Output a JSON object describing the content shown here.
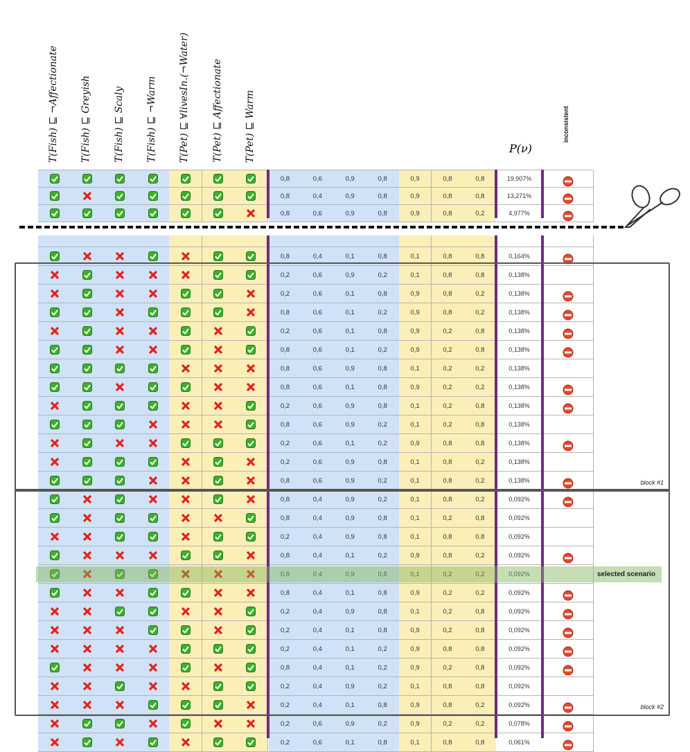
{
  "headers": [
    "T(Fish) ⊑ ¬Affectionate",
    "T(Fish) ⊑ Greyish",
    "T(Fish) ⊑ Scaly",
    "T(Fish) ⊑ ¬Warm",
    "T(Pet) ⊑ ∀livesIn.(¬Water)",
    "T(Pet) ⊑ Affectionate",
    "T(Pet) ⊑ Warm"
  ],
  "p_header": "P(ν)",
  "inconsistent_header": "inconsistent",
  "top_rows": [
    {
      "holds": [
        1,
        1,
        1,
        1,
        1,
        1,
        1
      ],
      "weights": [
        "0,8",
        "0,6",
        "0,9",
        "0,8",
        "0,9",
        "0,8",
        "0,8"
      ],
      "p": "19,907%",
      "inconsistent": 1
    },
    {
      "holds": [
        1,
        0,
        1,
        1,
        1,
        1,
        1
      ],
      "weights": [
        "0,8",
        "0,4",
        "0,9",
        "0,8",
        "0,9",
        "0,8",
        "0,8"
      ],
      "p": "13,271%",
      "inconsistent": 1
    },
    {
      "holds": [
        1,
        1,
        1,
        1,
        1,
        1,
        0
      ],
      "weights": [
        "0,8",
        "0,6",
        "0,9",
        "0,8",
        "0,9",
        "0,8",
        "0,2"
      ],
      "p": "4,977%",
      "inconsistent": 1
    }
  ],
  "rows_before": [
    {
      "holds": [
        1,
        0,
        0,
        1,
        0,
        1,
        1
      ],
      "weights": [
        "0,8",
        "0,4",
        "0,1",
        "0,8",
        "0,1",
        "0,8",
        "0,8"
      ],
      "p": "0,164%",
      "inconsistent": 1
    }
  ],
  "blocks": [
    {
      "label": "block #1",
      "rows": [
        {
          "holds": [
            0,
            1,
            0,
            0,
            0,
            1,
            1
          ],
          "weights": [
            "0,2",
            "0,6",
            "0,9",
            "0,2",
            "0,1",
            "0,8",
            "0,8"
          ],
          "p": "0,138%",
          "inconsistent": 0
        },
        {
          "holds": [
            0,
            1,
            0,
            0,
            1,
            1,
            0
          ],
          "weights": [
            "0,2",
            "0,6",
            "0,1",
            "0,8",
            "0,9",
            "0,8",
            "0,2"
          ],
          "p": "0,138%",
          "inconsistent": 1
        },
        {
          "holds": [
            1,
            1,
            0,
            1,
            1,
            1,
            0
          ],
          "weights": [
            "0,8",
            "0,6",
            "0,1",
            "0,2",
            "0,9",
            "0,8",
            "0,2"
          ],
          "p": "0,138%",
          "inconsistent": 1
        },
        {
          "holds": [
            0,
            1,
            0,
            0,
            1,
            0,
            1
          ],
          "weights": [
            "0,2",
            "0,6",
            "0,1",
            "0,8",
            "0,9",
            "0,2",
            "0,8"
          ],
          "p": "0,138%",
          "inconsistent": 1
        },
        {
          "holds": [
            1,
            1,
            0,
            0,
            1,
            0,
            1
          ],
          "weights": [
            "0,8",
            "0,6",
            "0,1",
            "0,2",
            "0,9",
            "0,2",
            "0,8"
          ],
          "p": "0,138%",
          "inconsistent": 1
        },
        {
          "holds": [
            1,
            1,
            1,
            1,
            0,
            0,
            0
          ],
          "weights": [
            "0,8",
            "0,6",
            "0,9",
            "0,8",
            "0,1",
            "0,2",
            "0,2"
          ],
          "p": "0,138%",
          "inconsistent": 0
        },
        {
          "holds": [
            1,
            1,
            0,
            1,
            1,
            0,
            0
          ],
          "weights": [
            "0,8",
            "0,6",
            "0,1",
            "0,8",
            "0,9",
            "0,2",
            "0,2"
          ],
          "p": "0,138%",
          "inconsistent": 1
        },
        {
          "holds": [
            0,
            1,
            1,
            1,
            0,
            0,
            1
          ],
          "weights": [
            "0,2",
            "0,6",
            "0,9",
            "0,8",
            "0,1",
            "0,2",
            "0,8"
          ],
          "p": "0,138%",
          "inconsistent": 1
        },
        {
          "holds": [
            1,
            1,
            1,
            0,
            0,
            0,
            1
          ],
          "weights": [
            "0,8",
            "0,6",
            "0,9",
            "0,2",
            "0,1",
            "0,2",
            "0,8"
          ],
          "p": "0,138%",
          "inconsistent": 0
        },
        {
          "holds": [
            0,
            1,
            0,
            0,
            1,
            1,
            1
          ],
          "weights": [
            "0,2",
            "0,6",
            "0,1",
            "0,2",
            "0,9",
            "0,8",
            "0,8"
          ],
          "p": "0,138%",
          "inconsistent": 1
        },
        {
          "holds": [
            0,
            1,
            1,
            1,
            0,
            1,
            0
          ],
          "weights": [
            "0,2",
            "0,6",
            "0,9",
            "0,8",
            "0,1",
            "0,8",
            "0,2"
          ],
          "p": "0,138%",
          "inconsistent": 0
        },
        {
          "holds": [
            1,
            1,
            1,
            0,
            0,
            1,
            0
          ],
          "weights": [
            "0,8",
            "0,6",
            "0,9",
            "0,2",
            "0,1",
            "0,8",
            "0,2"
          ],
          "p": "0,138%",
          "inconsistent": 1
        }
      ]
    },
    {
      "label": "block #2",
      "rows": [
        {
          "holds": [
            1,
            0,
            1,
            0,
            0,
            1,
            0
          ],
          "weights": [
            "0,8",
            "0,4",
            "0,9",
            "0,2",
            "0,1",
            "0,8",
            "0,2"
          ],
          "p": "0,092%",
          "inconsistent": 1
        },
        {
          "holds": [
            1,
            0,
            1,
            1,
            0,
            0,
            1
          ],
          "weights": [
            "0,8",
            "0,4",
            "0,9",
            "0,8",
            "0,1",
            "0,2",
            "0,8"
          ],
          "p": "0,092%",
          "inconsistent": 0
        },
        {
          "holds": [
            0,
            0,
            1,
            1,
            0,
            1,
            1
          ],
          "weights": [
            "0,2",
            "0,4",
            "0,9",
            "0,8",
            "0,1",
            "0,8",
            "0,8"
          ],
          "p": "0,092%",
          "inconsistent": 0
        },
        {
          "holds": [
            1,
            0,
            0,
            0,
            1,
            1,
            0
          ],
          "weights": [
            "0,8",
            "0,4",
            "0,1",
            "0,2",
            "0,9",
            "0,8",
            "0,2"
          ],
          "p": "0,092%",
          "inconsistent": 1
        },
        {
          "holds": [
            1,
            0,
            1,
            1,
            0,
            0,
            0
          ],
          "weights": [
            "0,8",
            "0,4",
            "0,9",
            "0,8",
            "0,1",
            "0,2",
            "0,2"
          ],
          "p": "0,092%",
          "inconsistent": 0,
          "selected": "selected scenario"
        },
        {
          "holds": [
            1,
            0,
            0,
            1,
            1,
            0,
            0
          ],
          "weights": [
            "0,8",
            "0,4",
            "0,1",
            "0,8",
            "0,9",
            "0,2",
            "0,2"
          ],
          "p": "0,092%",
          "inconsistent": 1
        },
        {
          "holds": [
            0,
            0,
            1,
            1,
            0,
            0,
            1
          ],
          "weights": [
            "0,2",
            "0,4",
            "0,9",
            "0,8",
            "0,1",
            "0,2",
            "0,8"
          ],
          "p": "0,092%",
          "inconsistent": 1
        },
        {
          "holds": [
            0,
            0,
            0,
            1,
            1,
            0,
            1
          ],
          "weights": [
            "0,2",
            "0,4",
            "0,1",
            "0,8",
            "0,9",
            "0,2",
            "0,8"
          ],
          "p": "0,092%",
          "inconsistent": 1
        },
        {
          "holds": [
            0,
            0,
            0,
            0,
            1,
            1,
            1
          ],
          "weights": [
            "0,2",
            "0,4",
            "0,1",
            "0,2",
            "0,9",
            "0,8",
            "0,8"
          ],
          "p": "0,092%",
          "inconsistent": 1
        },
        {
          "holds": [
            1,
            0,
            0,
            0,
            1,
            0,
            1
          ],
          "weights": [
            "0,8",
            "0,4",
            "0,1",
            "0,2",
            "0,9",
            "0,2",
            "0,8"
          ],
          "p": "0,092%",
          "inconsistent": 1
        },
        {
          "holds": [
            0,
            0,
            1,
            0,
            0,
            1,
            1
          ],
          "weights": [
            "0,2",
            "0,4",
            "0,9",
            "0,2",
            "0,1",
            "0,8",
            "0,8"
          ],
          "p": "0,092%",
          "inconsistent": 0
        },
        {
          "holds": [
            0,
            0,
            0,
            1,
            1,
            1,
            0
          ],
          "weights": [
            "0,2",
            "0,4",
            "0,1",
            "0,8",
            "0,9",
            "0,8",
            "0,2"
          ],
          "p": "0,092%",
          "inconsistent": 1
        }
      ]
    }
  ],
  "rows_after": [
    {
      "holds": [
        0,
        1,
        1,
        0,
        1,
        0,
        0
      ],
      "weights": [
        "0,2",
        "0,6",
        "0,9",
        "0,2",
        "0,9",
        "0,2",
        "0,2"
      ],
      "p": "0,078%",
      "inconsistent": 1
    },
    {
      "holds": [
        0,
        1,
        0,
        1,
        0,
        1,
        1
      ],
      "weights": [
        "0,2",
        "0,6",
        "0,1",
        "0,8",
        "0,1",
        "0,8",
        "0,8"
      ],
      "p": "0,061%",
      "inconsistent": 1
    }
  ]
}
